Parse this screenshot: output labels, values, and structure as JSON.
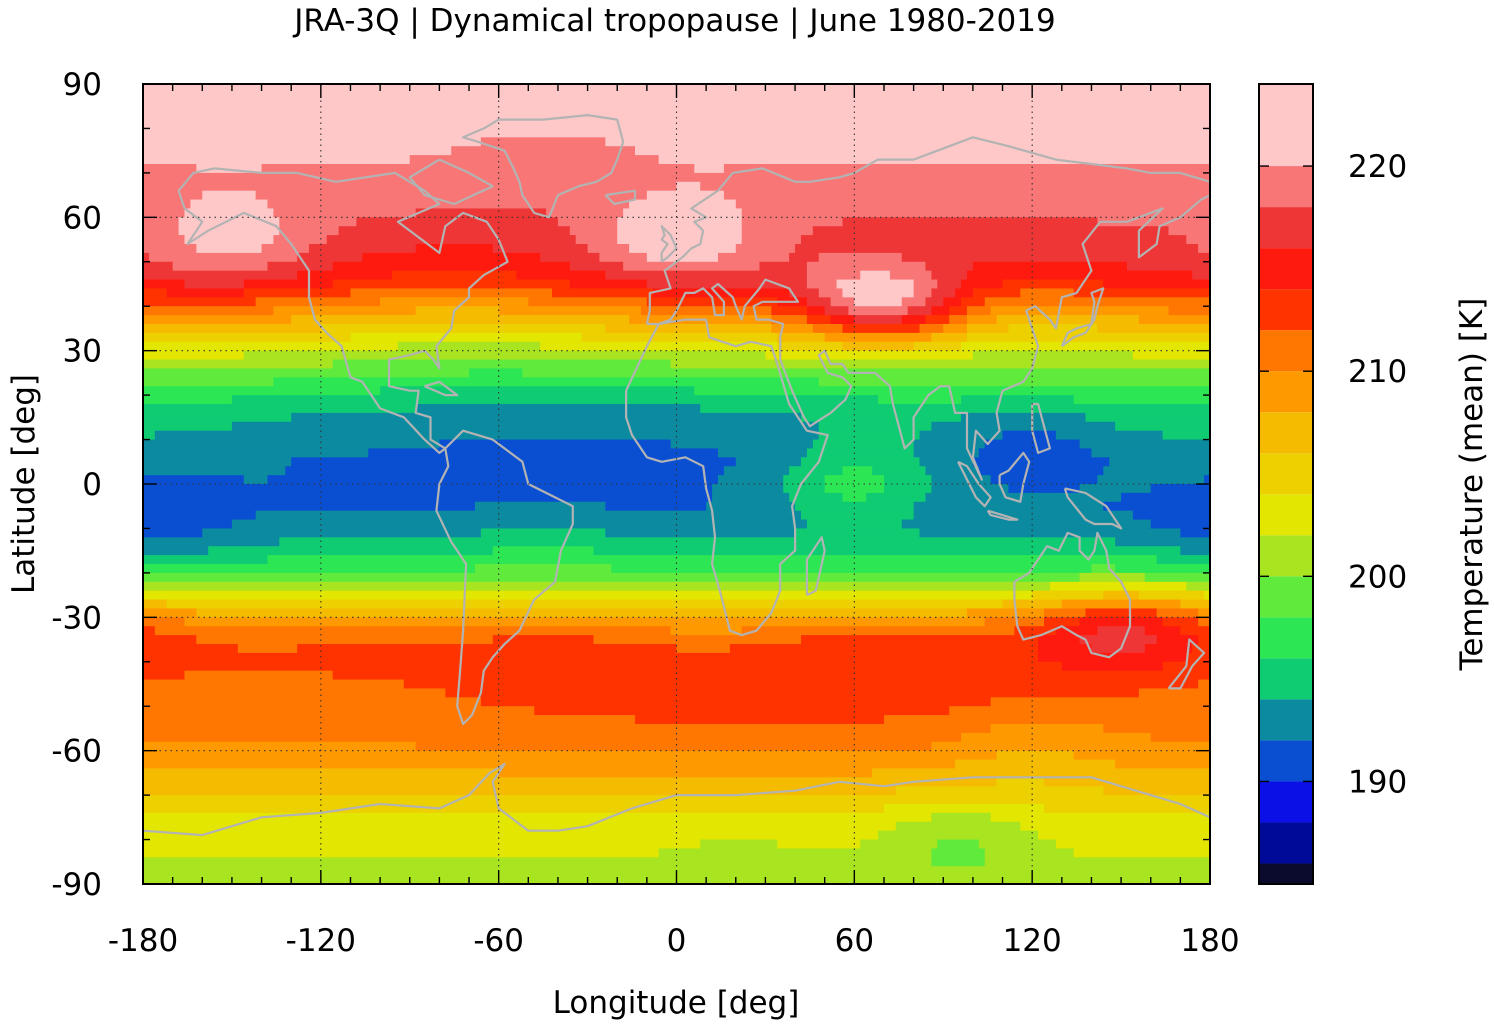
{
  "chart_data": {
    "type": "heatmap",
    "title": "JRA-3Q | Dynamical tropopause | June 1980-2019",
    "xlabel": "Longitude [deg]",
    "ylabel": "Latitude [deg]",
    "xlim": [
      -180,
      180
    ],
    "ylim": [
      -90,
      90
    ],
    "xticks": [
      -180,
      -120,
      -60,
      0,
      60,
      120,
      180
    ],
    "yticks": [
      90,
      60,
      30,
      0,
      -30,
      -60,
      -90
    ],
    "grid": true,
    "colorbar": {
      "label": "Temperature (mean) [K]",
      "range": [
        185,
        224
      ],
      "ticks": [
        190,
        200,
        210,
        220
      ],
      "levels": [
        {
          "min": 185,
          "max": 186,
          "color": "#0b0b2e"
        },
        {
          "min": 186,
          "max": 188,
          "color": "#000a99"
        },
        {
          "min": 188,
          "max": 190,
          "color": "#0a10e6"
        },
        {
          "min": 190,
          "max": 192,
          "color": "#0a4fd2"
        },
        {
          "min": 192,
          "max": 194,
          "color": "#0b8aa0"
        },
        {
          "min": 194,
          "max": 196,
          "color": "#0fcc73"
        },
        {
          "min": 196,
          "max": 198,
          "color": "#2de654"
        },
        {
          "min": 198,
          "max": 200,
          "color": "#5fea3c"
        },
        {
          "min": 200,
          "max": 202,
          "color": "#a8e420"
        },
        {
          "min": 202,
          "max": 204,
          "color": "#e2e600"
        },
        {
          "min": 204,
          "max": 206,
          "color": "#ecd000"
        },
        {
          "min": 206,
          "max": 208,
          "color": "#f5bb00"
        },
        {
          "min": 208,
          "max": 210,
          "color": "#ff9900"
        },
        {
          "min": 210,
          "max": 212,
          "color": "#ff7700"
        },
        {
          "min": 212,
          "max": 214,
          "color": "#ff3300"
        },
        {
          "min": 214,
          "max": 216,
          "color": "#ff1a10"
        },
        {
          "min": 216,
          "max": 218,
          "color": "#ee3636"
        },
        {
          "min": 218,
          "max": 220,
          "color": "#f87676"
        },
        {
          "min": 220,
          "max": 224,
          "color": "#ffc8c8"
        }
      ]
    },
    "zonal_profile": {
      "lat": [
        90,
        80,
        72,
        65,
        60,
        55,
        50,
        45,
        40,
        35,
        30,
        25,
        20,
        15,
        10,
        5,
        0,
        -5,
        -10,
        -15,
        -20,
        -25,
        -30,
        -35,
        -40,
        -45,
        -50,
        -55,
        -60,
        -65,
        -70,
        -75,
        -80,
        -85,
        -90
      ],
      "temp_k": [
        221,
        221,
        220,
        219,
        218,
        217,
        216,
        214,
        210,
        206,
        202,
        199,
        196,
        194,
        193,
        192,
        192,
        192,
        193,
        195,
        198,
        203,
        209,
        212,
        213,
        212.5,
        212,
        211,
        210,
        208,
        206,
        204,
        203,
        202,
        202
      ]
    },
    "features": [
      {
        "lon": 0,
        "lat": 55,
        "temp_k": 221.5
      },
      {
        "lon": -45,
        "lat": 72,
        "temp_k": 218.5
      },
      {
        "lon": -150,
        "lat": 55,
        "temp_k": 220.5
      },
      {
        "lon": 70,
        "lat": 40,
        "temp_k": 220.5
      },
      {
        "lon": 130,
        "lat": 52,
        "temp_k": 217
      },
      {
        "lon": 120,
        "lat": 10,
        "temp_k": 190.5
      },
      {
        "lon": 60,
        "lat": 0,
        "temp_k": 196.5
      },
      {
        "lon": -175,
        "lat": -10,
        "temp_k": 191
      },
      {
        "lon": -45,
        "lat": -15,
        "temp_k": 196.5
      },
      {
        "lon": 150,
        "lat": -32,
        "temp_k": 216
      },
      {
        "lon": 10,
        "lat": -32,
        "temp_k": 209
      },
      {
        "lon": 120,
        "lat": -60,
        "temp_k": 208
      },
      {
        "lon": 20,
        "lat": -80,
        "temp_k": 202
      },
      {
        "lon": 95,
        "lat": -80,
        "temp_k": 200
      }
    ]
  }
}
